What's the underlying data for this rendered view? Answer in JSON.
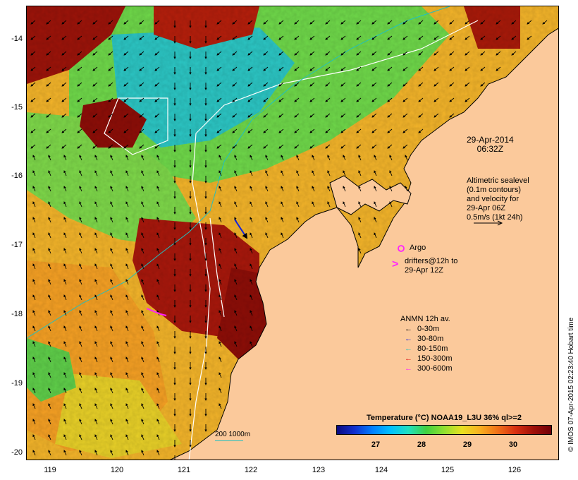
{
  "map": {
    "y_ticks": [
      "-14",
      "-15",
      "-16",
      "-17",
      "-18",
      "-19",
      "-20"
    ],
    "x_ticks": [
      "119",
      "120",
      "121",
      "122",
      "123",
      "124",
      "125",
      "126"
    ]
  },
  "date_label": {
    "line1": "29-Apr-2014",
    "line2": "06:32Z"
  },
  "altimetry_note": {
    "line1": "Altimetric sealevel",
    "line2": "(0.1m contours)",
    "line3": "and velocity for",
    "line4": "29-Apr 06Z",
    "line5": "0.5m/s (1kt 24h)"
  },
  "argo_label": "Argo",
  "drifters_label": {
    "line1": "drifters@12h to",
    "line2": "29-Apr 12Z"
  },
  "anmn_legend": {
    "title": "ANMN 12h av.",
    "items": [
      {
        "label": "0-30m",
        "color": "#000000"
      },
      {
        "label": "30-80m",
        "color": "#1020e0"
      },
      {
        "label": "80-150m",
        "color": "#20c0c0"
      },
      {
        "label": "150-300m",
        "color": "#e01010"
      },
      {
        "label": "300-600m",
        "color": "#ff20ff"
      }
    ]
  },
  "colorbar": {
    "title": "Temperature (°C) NOAA19_L3U 36% ql>=2",
    "ticks": [
      "27",
      "28",
      "29",
      "30"
    ]
  },
  "depth_legend": "200  1000m",
  "credit": "© IMOS 07-Apr-2015 02:23:40 Hobart time",
  "colors": {
    "land": "#fbc99b",
    "warm": "#a01008",
    "mid": "#f8b020",
    "cool": "#20c0d0",
    "green": "#40d040"
  }
}
